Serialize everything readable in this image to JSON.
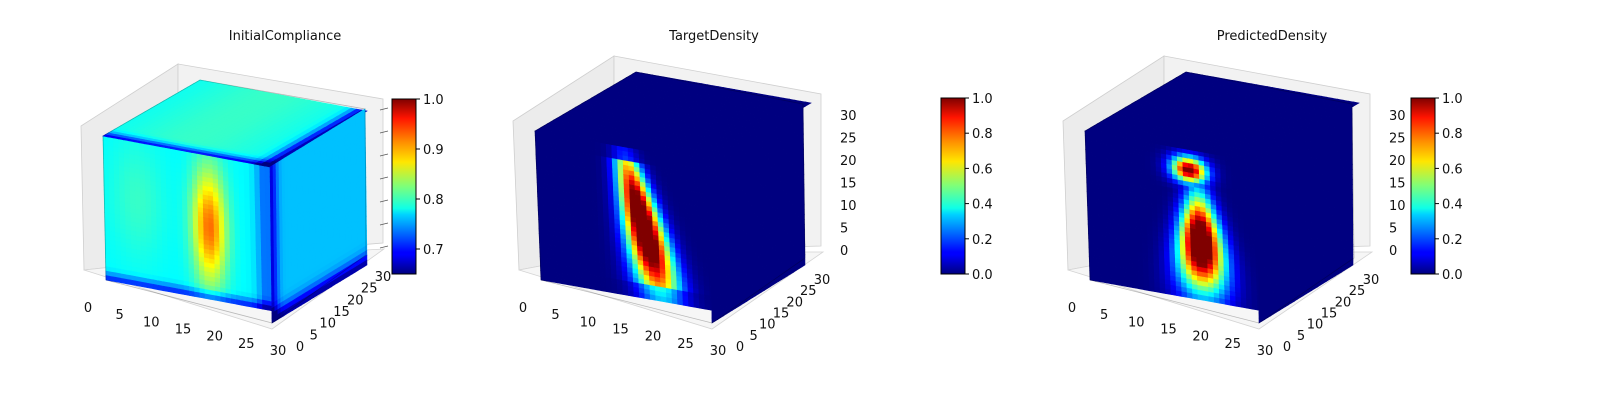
{
  "chart_data": [
    {
      "type": "heatmap",
      "subtype": "3d-voxel",
      "title": "InitialCompliance",
      "x_ticks": [
        "0",
        "5",
        "10",
        "15",
        "20",
        "25",
        "30"
      ],
      "y_ticks": [
        "0",
        "5",
        "10",
        "15",
        "20",
        "25",
        "30"
      ],
      "z_ticks": [],
      "colorbar": {
        "min": 0.65,
        "max": 1.0,
        "ticks": [
          "0.7",
          "0.8",
          "0.9",
          "1.0"
        ],
        "tick_values": [
          0.7,
          0.8,
          0.9,
          1.0
        ],
        "colormap": "jet"
      },
      "regions": {
        "front_face_base": 0.78,
        "top_face_base": 0.78,
        "right_face_base": 0.76,
        "hot_column_peak": 0.92,
        "edge_minimum": 0.66
      }
    },
    {
      "type": "heatmap",
      "subtype": "3d-voxel",
      "title": "TargetDensity",
      "x_ticks": [
        "0",
        "5",
        "10",
        "15",
        "20",
        "25",
        "30"
      ],
      "y_ticks": [
        "0",
        "5",
        "10",
        "15",
        "20",
        "25",
        "30"
      ],
      "z_ticks": [
        "0",
        "5",
        "10",
        "15",
        "20",
        "25",
        "30"
      ],
      "colorbar": {
        "min": 0.0,
        "max": 1.0,
        "ticks": [
          "0.0",
          "0.2",
          "0.4",
          "0.6",
          "0.8",
          "1.0"
        ],
        "tick_values": [
          0,
          0.2,
          0.4,
          0.6,
          0.8,
          1.0
        ],
        "colormap": "jet"
      },
      "regions": {
        "background": 0.0,
        "structure_peak": 1.0,
        "structure_shape": "slanted column, narrow top widening toward base"
      }
    },
    {
      "type": "heatmap",
      "subtype": "3d-voxel",
      "title": "PredictedDensity",
      "x_ticks": [
        "0",
        "5",
        "10",
        "15",
        "20",
        "25",
        "30"
      ],
      "y_ticks": [
        "0",
        "5",
        "10",
        "15",
        "20",
        "25",
        "30"
      ],
      "z_ticks": [
        "0",
        "5",
        "10",
        "15",
        "20",
        "25",
        "30"
      ],
      "colorbar": {
        "min": 0.0,
        "max": 1.0,
        "ticks": [
          "0.0",
          "0.2",
          "0.4",
          "0.6",
          "0.8",
          "1.0"
        ],
        "tick_values": [
          0,
          0.2,
          0.4,
          0.6,
          0.8,
          1.0
        ],
        "colormap": "jet"
      },
      "regions": {
        "background": 0.0,
        "structure_peak": 1.0,
        "structure_shape": "round head on top, wide body below"
      }
    }
  ]
}
